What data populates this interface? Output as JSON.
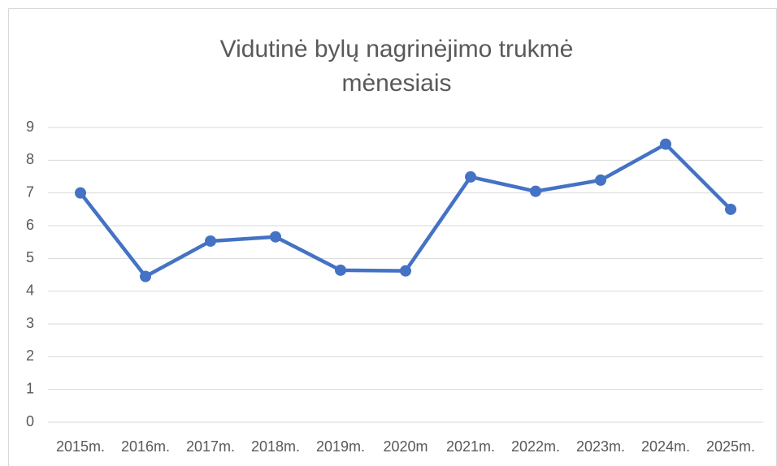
{
  "chart_data": {
    "type": "line",
    "title": "Vidutinė bylų nagrinėjimo trukmė mėnesiais",
    "categories": [
      "2015m.",
      "2016m.",
      "2017m.",
      "2018m.",
      "2019m.",
      "2020m",
      "2021m.",
      "2022m.",
      "2023m.",
      "2024m.",
      "2025m."
    ],
    "values": [
      7.0,
      4.45,
      5.53,
      5.66,
      4.64,
      4.62,
      7.49,
      7.05,
      7.39,
      8.49,
      6.5
    ],
    "color": "#4472c4",
    "ylim": [
      0,
      9
    ],
    "yticks": [
      0,
      1,
      2,
      3,
      4,
      5,
      6,
      7,
      8,
      9
    ],
    "grid": true
  }
}
